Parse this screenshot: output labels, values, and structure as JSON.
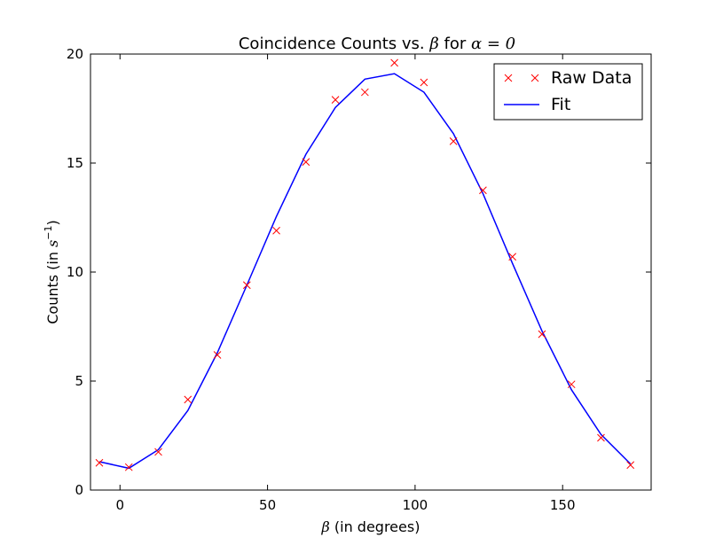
{
  "chart_data": {
    "type": "line",
    "title": {
      "prefix": "Coincidence Counts vs. ",
      "var1": "β",
      "middle": " for ",
      "var2": "α",
      "eq": " = 0"
    },
    "xlabel": {
      "var": "β",
      "rest": " (in degrees)"
    },
    "ylabel": {
      "prefix": "Counts (in ",
      "var": "s",
      "sup": "−1",
      "suffix": ")"
    },
    "xlim": [
      -10,
      180
    ],
    "ylim": [
      0,
      20
    ],
    "xticks": [
      0,
      50,
      100,
      150
    ],
    "yticks": [
      0,
      5,
      10,
      15,
      20
    ],
    "grid": false,
    "legend_position": "top-right",
    "colors": {
      "raw": "#ff0000",
      "fit": "#0000ff"
    },
    "series": [
      {
        "name": "Raw Data",
        "style": "x-markers",
        "x": [
          -7,
          3,
          13,
          23,
          33,
          43,
          53,
          63,
          73,
          83,
          93,
          103,
          113,
          123,
          133,
          143,
          153,
          163,
          173
        ],
        "y": [
          1.25,
          1.05,
          1.75,
          4.15,
          6.2,
          9.4,
          11.9,
          15.05,
          17.9,
          18.25,
          19.6,
          18.7,
          16.0,
          13.75,
          10.7,
          7.15,
          4.85,
          2.4,
          1.15
        ]
      },
      {
        "name": "Fit",
        "style": "line",
        "x": [
          -7,
          3,
          13,
          23,
          33,
          43,
          53,
          63,
          73,
          83,
          93,
          103,
          113,
          123,
          133,
          143,
          153,
          163,
          173
        ],
        "y": [
          1.3,
          1.0,
          1.85,
          3.65,
          6.3,
          9.4,
          12.55,
          15.4,
          17.55,
          18.85,
          19.1,
          18.25,
          16.35,
          13.6,
          10.4,
          7.3,
          4.6,
          2.55,
          1.2
        ]
      }
    ]
  }
}
